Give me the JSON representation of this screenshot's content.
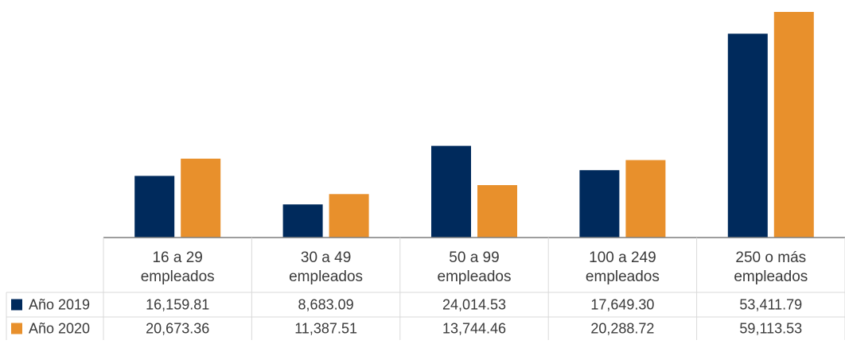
{
  "chart_data": {
    "type": "bar",
    "categories": [
      [
        "16 a 29",
        "empleados"
      ],
      [
        "30 a 49",
        "empleados"
      ],
      [
        "50 a 99",
        "empleados"
      ],
      [
        "100 a 249",
        "empleados"
      ],
      [
        "250 o más",
        "empleados"
      ]
    ],
    "series": [
      {
        "name": "Año 2019",
        "color": "#002A5C",
        "values": [
          16159.81,
          8683.09,
          24014.53,
          17649.3,
          53411.79
        ],
        "labels": [
          "16,159.81",
          "8,683.09",
          "24,014.53",
          "17,649.30",
          "53,411.79"
        ]
      },
      {
        "name": "Año 2020",
        "color": "#E8902C",
        "values": [
          20673.36,
          11387.51,
          13744.46,
          20288.72,
          59113.53
        ],
        "labels": [
          "20,673.36",
          "11,387.51",
          "13,744.46",
          "20,288.72",
          "59,113.53"
        ]
      }
    ],
    "ylim": [
      0,
      60000
    ],
    "grid": false,
    "legend": "data-table-left",
    "title": "",
    "xlabel": "",
    "ylabel": ""
  }
}
